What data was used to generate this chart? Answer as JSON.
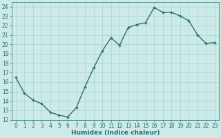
{
  "xlabel": "Humidex (Indice chaleur)",
  "x": [
    0,
    1,
    2,
    3,
    4,
    5,
    6,
    7,
    8,
    9,
    10,
    11,
    12,
    13,
    14,
    15,
    16,
    17,
    18,
    19,
    20,
    21,
    22,
    23
  ],
  "y": [
    16.5,
    14.8,
    14.1,
    13.7,
    12.8,
    12.5,
    12.3,
    13.3,
    15.5,
    17.5,
    19.3,
    20.7,
    19.9,
    21.8,
    22.1,
    22.3,
    23.9,
    23.4,
    23.4,
    23.0,
    22.5,
    21.0,
    20.1,
    20.2
  ],
  "line_color": "#2d6e6e",
  "marker": "P",
  "marker_size": 2.5,
  "bg_color": "#cceae8",
  "grid_color": "#aad4d0",
  "ylim": [
    12,
    24.5
  ],
  "xlim": [
    -0.5,
    23.5
  ],
  "yticks": [
    12,
    13,
    14,
    15,
    16,
    17,
    18,
    19,
    20,
    21,
    22,
    23,
    24
  ],
  "xticks": [
    0,
    1,
    2,
    3,
    4,
    5,
    6,
    7,
    8,
    9,
    10,
    11,
    12,
    13,
    14,
    15,
    16,
    17,
    18,
    19,
    20,
    21,
    22,
    23
  ],
  "tick_label_fontsize": 5.5,
  "xlabel_fontsize": 6.5,
  "line_width": 1.0
}
